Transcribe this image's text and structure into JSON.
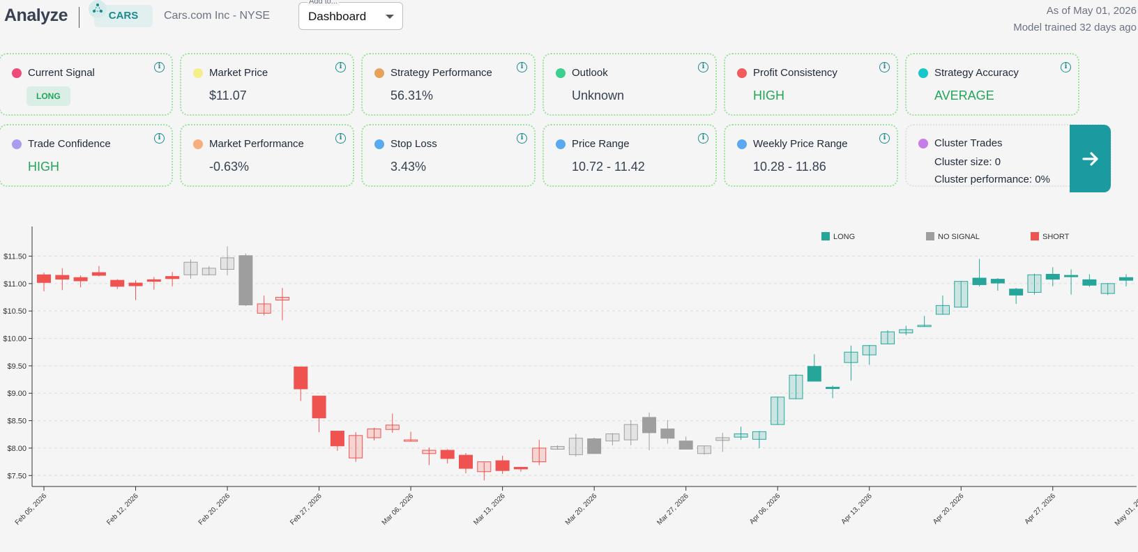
{
  "header": {
    "brand": "Analyze",
    "ticker": "CARS",
    "company": "Cars.com Inc - NYSE",
    "add_to_label": "Add to...",
    "add_to_value": "Dashboard",
    "as_of": "As of May 01, 2026",
    "model_trained": "Model trained 32 days ago"
  },
  "cards": {
    "current_signal": {
      "label": "Current Signal",
      "value": "LONG",
      "dot": "#ee4a7a"
    },
    "market_price": {
      "label": "Market Price",
      "value": "$11.07",
      "dot": "#f5ef8a"
    },
    "strategy_performance": {
      "label": "Strategy Performance",
      "value": "56.31%",
      "dot": "#e8a25a"
    },
    "outlook": {
      "label": "Outlook",
      "value": "Unknown",
      "dot": "#3ad08e"
    },
    "profit_consistency": {
      "label": "Profit Consistency",
      "value": "HIGH",
      "dot": "#f55b5b"
    },
    "strategy_accuracy": {
      "label": "Strategy Accuracy",
      "value": "AVERAGE",
      "dot": "#16c6c8"
    },
    "trade_confidence": {
      "label": "Trade Confidence",
      "value": "HIGH",
      "dot": "#a79cf0"
    },
    "market_performance": {
      "label": "Market Performance",
      "value": "-0.63%",
      "dot": "#f7ad7e"
    },
    "stop_loss": {
      "label": "Stop Loss",
      "value": "3.43%",
      "dot": "#5aa9f0"
    },
    "price_range": {
      "label": "Price Range",
      "value": "10.72 - 11.42",
      "dot": "#5aa9f0"
    },
    "weekly_price_range": {
      "label": "Weekly Price Range",
      "value": "10.28 - 11.86",
      "dot": "#5aa9f0"
    },
    "cluster_trades": {
      "label": "Cluster Trades",
      "size": "Cluster size: 0",
      "performance": "Cluster performance: 0%",
      "dot": "#c77de8"
    }
  },
  "colors": {
    "long": "#26a69a",
    "short": "#ef5350",
    "none": "#9e9e9e"
  },
  "chart_data": {
    "type": "candlestick",
    "legend": [
      {
        "name": "LONG",
        "color": "#26a69a"
      },
      {
        "name": "NO SIGNAL",
        "color": "#9e9e9e"
      },
      {
        "name": "SHORT",
        "color": "#ef5350"
      }
    ],
    "legend_position": "top-right",
    "ylim": [
      7.3,
      11.85
    ],
    "y_ticks": [
      "$7.50",
      "$8.00",
      "$8.50",
      "$9.00",
      "$9.50",
      "$10.00",
      "$10.50",
      "$11.00",
      "$11.50"
    ],
    "x_ticks": [
      "Feb 05, 2026",
      "Feb 12, 2026",
      "Feb 20, 2026",
      "Feb 27, 2026",
      "Mar 06, 2026",
      "Mar 13, 2026",
      "Mar 20, 2026",
      "Mar 27, 2026",
      "Apr 06, 2026",
      "Apr 13, 2026",
      "Apr 20, 2026",
      "Apr 27, 2026",
      "May 01, 2026"
    ],
    "x_tick_index": [
      0,
      5,
      10,
      15,
      20,
      25,
      30,
      35,
      40,
      45,
      50,
      55,
      60
    ],
    "grid": "horizontal dashed",
    "candles": [
      {
        "o": 11.16,
        "h": 11.2,
        "l": 10.86,
        "c": 11.02,
        "s": "short"
      },
      {
        "o": 11.15,
        "h": 11.28,
        "l": 10.88,
        "c": 11.08,
        "s": "short"
      },
      {
        "o": 11.11,
        "h": 11.15,
        "l": 10.93,
        "c": 11.05,
        "s": "short"
      },
      {
        "o": 11.2,
        "h": 11.32,
        "l": 11.13,
        "c": 11.15,
        "s": "short"
      },
      {
        "o": 11.06,
        "h": 11.08,
        "l": 10.9,
        "c": 10.95,
        "s": "short"
      },
      {
        "o": 11.01,
        "h": 11.06,
        "l": 10.7,
        "c": 10.96,
        "s": "short"
      },
      {
        "o": 11.07,
        "h": 11.12,
        "l": 10.89,
        "c": 11.04,
        "s": "short"
      },
      {
        "o": 11.13,
        "h": 11.21,
        "l": 10.95,
        "c": 11.09,
        "s": "short"
      },
      {
        "o": 11.16,
        "h": 11.44,
        "l": 11.09,
        "c": 11.39,
        "s": "none"
      },
      {
        "o": 11.16,
        "h": 11.32,
        "l": 11.15,
        "c": 11.28,
        "s": "none"
      },
      {
        "o": 11.26,
        "h": 11.68,
        "l": 11.15,
        "c": 11.47,
        "s": "none"
      },
      {
        "o": 11.51,
        "h": 11.55,
        "l": 10.59,
        "c": 10.61,
        "s": "none"
      },
      {
        "o": 10.46,
        "h": 10.78,
        "l": 10.42,
        "c": 10.63,
        "s": "short"
      },
      {
        "o": 10.7,
        "h": 10.92,
        "l": 10.33,
        "c": 10.75,
        "s": "short"
      },
      {
        "o": 9.48,
        "h": 9.48,
        "l": 8.86,
        "c": 9.08,
        "s": "short"
      },
      {
        "o": 8.95,
        "h": 8.95,
        "l": 8.29,
        "c": 8.55,
        "s": "short"
      },
      {
        "o": 8.31,
        "h": 8.31,
        "l": 7.95,
        "c": 8.04,
        "s": "short"
      },
      {
        "o": 7.82,
        "h": 8.29,
        "l": 7.75,
        "c": 8.23,
        "s": "short"
      },
      {
        "o": 8.19,
        "h": 8.37,
        "l": 8.14,
        "c": 8.35,
        "s": "short"
      },
      {
        "o": 8.34,
        "h": 8.63,
        "l": 8.28,
        "c": 8.42,
        "s": "short"
      },
      {
        "o": 8.14,
        "h": 8.3,
        "l": 8.12,
        "c": 8.15,
        "s": "short"
      },
      {
        "o": 7.9,
        "h": 8.01,
        "l": 7.69,
        "c": 7.96,
        "s": "short"
      },
      {
        "o": 7.96,
        "h": 7.98,
        "l": 7.72,
        "c": 7.81,
        "s": "short"
      },
      {
        "o": 7.87,
        "h": 7.91,
        "l": 7.54,
        "c": 7.63,
        "s": "short"
      },
      {
        "o": 7.57,
        "h": 7.74,
        "l": 7.41,
        "c": 7.75,
        "s": "short"
      },
      {
        "o": 7.77,
        "h": 7.86,
        "l": 7.53,
        "c": 7.59,
        "s": "short"
      },
      {
        "o": 7.65,
        "h": 7.66,
        "l": 7.57,
        "c": 7.62,
        "s": "short"
      },
      {
        "o": 7.75,
        "h": 8.15,
        "l": 7.69,
        "c": 8.0,
        "s": "short"
      },
      {
        "o": 7.98,
        "h": 8.05,
        "l": 7.97,
        "c": 8.03,
        "s": "none"
      },
      {
        "o": 7.88,
        "h": 8.26,
        "l": 7.85,
        "c": 8.18,
        "s": "none"
      },
      {
        "o": 8.17,
        "h": 8.19,
        "l": 7.91,
        "c": 7.9,
        "s": "none"
      },
      {
        "o": 8.13,
        "h": 8.27,
        "l": 8.05,
        "c": 8.26,
        "s": "none"
      },
      {
        "o": 8.15,
        "h": 8.51,
        "l": 8.05,
        "c": 8.43,
        "s": "none"
      },
      {
        "o": 8.56,
        "h": 8.65,
        "l": 7.96,
        "c": 8.28,
        "s": "none"
      },
      {
        "o": 8.35,
        "h": 8.51,
        "l": 8.08,
        "c": 8.18,
        "s": "none"
      },
      {
        "o": 8.13,
        "h": 8.21,
        "l": 7.98,
        "c": 7.98,
        "s": "none"
      },
      {
        "o": 7.9,
        "h": 8.04,
        "l": 7.88,
        "c": 8.04,
        "s": "none"
      },
      {
        "o": 8.14,
        "h": 8.28,
        "l": 7.93,
        "c": 8.19,
        "s": "none"
      },
      {
        "o": 8.2,
        "h": 8.39,
        "l": 8.15,
        "c": 8.26,
        "s": "long"
      },
      {
        "o": 8.16,
        "h": 8.31,
        "l": 8.0,
        "c": 8.3,
        "s": "long"
      },
      {
        "o": 8.43,
        "h": 8.93,
        "l": 8.43,
        "c": 8.93,
        "s": "long"
      },
      {
        "o": 8.9,
        "h": 9.35,
        "l": 8.9,
        "c": 9.33,
        "s": "long"
      },
      {
        "o": 9.49,
        "h": 9.71,
        "l": 9.22,
        "c": 9.22,
        "s": "long"
      },
      {
        "o": 9.11,
        "h": 9.14,
        "l": 8.91,
        "c": 9.09,
        "s": "long"
      },
      {
        "o": 9.56,
        "h": 9.87,
        "l": 9.23,
        "c": 9.75,
        "s": "long"
      },
      {
        "o": 9.7,
        "h": 9.88,
        "l": 9.52,
        "c": 9.87,
        "s": "long"
      },
      {
        "o": 9.9,
        "h": 10.15,
        "l": 9.9,
        "c": 10.12,
        "s": "long"
      },
      {
        "o": 10.1,
        "h": 10.23,
        "l": 10.06,
        "c": 10.16,
        "s": "long"
      },
      {
        "o": 10.23,
        "h": 10.41,
        "l": 10.22,
        "c": 10.24,
        "s": "long"
      },
      {
        "o": 10.44,
        "h": 10.78,
        "l": 10.44,
        "c": 10.6,
        "s": "long"
      },
      {
        "o": 10.57,
        "h": 11.04,
        "l": 10.57,
        "c": 11.04,
        "s": "long"
      },
      {
        "o": 11.1,
        "h": 11.45,
        "l": 10.95,
        "c": 10.98,
        "s": "long"
      },
      {
        "o": 11.08,
        "h": 11.1,
        "l": 10.87,
        "c": 11.01,
        "s": "long"
      },
      {
        "o": 10.9,
        "h": 10.92,
        "l": 10.63,
        "c": 10.79,
        "s": "long"
      },
      {
        "o": 10.84,
        "h": 11.18,
        "l": 10.8,
        "c": 11.16,
        "s": "long"
      },
      {
        "o": 11.17,
        "h": 11.3,
        "l": 10.95,
        "c": 11.08,
        "s": "long"
      },
      {
        "o": 11.15,
        "h": 11.26,
        "l": 10.8,
        "c": 11.13,
        "s": "long"
      },
      {
        "o": 11.07,
        "h": 11.17,
        "l": 10.94,
        "c": 10.97,
        "s": "long"
      },
      {
        "o": 10.82,
        "h": 11.01,
        "l": 10.79,
        "c": 11.0,
        "s": "long"
      },
      {
        "o": 11.11,
        "h": 11.17,
        "l": 10.95,
        "c": 11.06,
        "s": "long"
      }
    ]
  }
}
